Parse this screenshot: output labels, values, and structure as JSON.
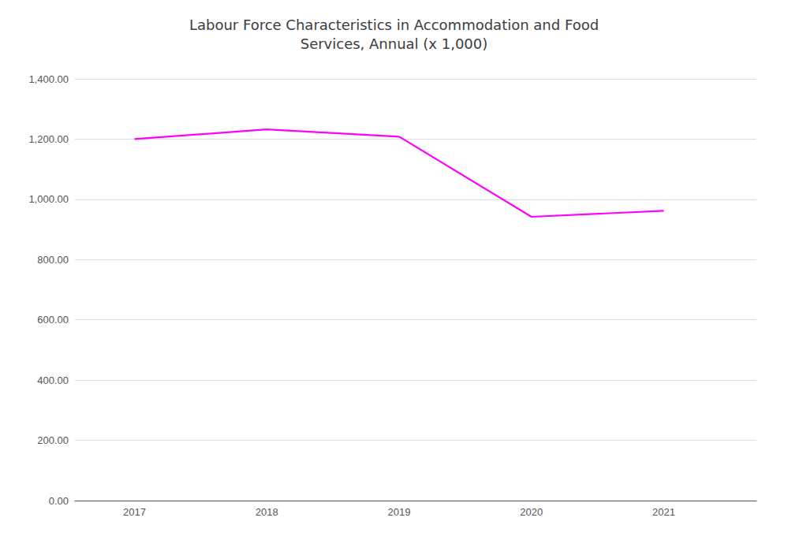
{
  "chart_data": {
    "type": "line",
    "title": "Labour Force Characteristics in Accommodation and Food\nServices, Annual (x 1,000)",
    "x": [
      2017,
      2018,
      2019,
      2020,
      2021
    ],
    "values": [
      1200,
      1232,
      1208,
      942,
      962
    ],
    "color": "#ff00ff",
    "xlim": [
      2016.55,
      2021.7
    ],
    "xticks": [
      2017,
      2018,
      2019,
      2020,
      2021
    ],
    "ylim": [
      0,
      1400
    ],
    "yticks": [
      {
        "value": 0,
        "label": "0.00"
      },
      {
        "value": 200,
        "label": "200.00"
      },
      {
        "value": 400,
        "label": "400.00"
      },
      {
        "value": 600,
        "label": "600.00"
      },
      {
        "value": 800,
        "label": "800.00"
      },
      {
        "value": 1000,
        "label": "1,000.00"
      },
      {
        "value": 1200,
        "label": "1,200.00"
      },
      {
        "value": 1400,
        "label": "1,400.00"
      }
    ],
    "grid": true
  }
}
